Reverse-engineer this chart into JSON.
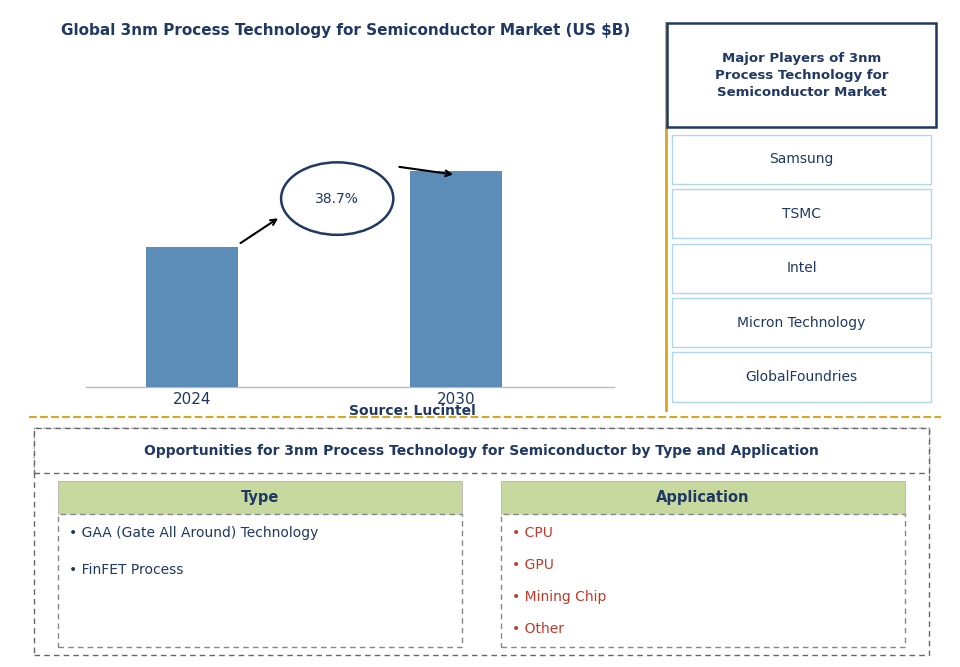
{
  "title": "Global 3nm Process Technology for Semiconductor Market (US $B)",
  "bar_categories": [
    "2024",
    "2030"
  ],
  "bar_values": [
    1.0,
    1.55
  ],
  "bar_color": "#5B8DB8",
  "cagr_label": "38.7%",
  "source_text": "Source: Lucintel",
  "right_box_title": "Major Players of 3nm\nProcess Technology for\nSemiconductor Market",
  "right_box_players": [
    "Samsung",
    "TSMC",
    "Intel",
    "Micron Technology",
    "GlobalFoundries"
  ],
  "bottom_title": "Opportunities for 3nm Process Technology for Semiconductor by Type and Application",
  "type_header": "Type",
  "type_items": [
    "• GAA (Gate All Around) Technology",
    "• FinFET Process"
  ],
  "app_header": "Application",
  "app_items": [
    "• CPU",
    "• GPU",
    "• Mining Chip",
    "• Other"
  ],
  "dark_blue": "#1F3864",
  "medium_blue": "#2460A7",
  "bar_color_hex": "#5B8DB8",
  "gold_line_color": "#DAA520",
  "header_bg_color": "#C8D9A0",
  "light_blue_border": "#AED6F1",
  "ellipse_color": "#1F3864",
  "title_color": "#1F3864",
  "bottom_title_color": "#1F3864",
  "app_item_color": "#C0392B",
  "type_item_color": "#1F3864"
}
